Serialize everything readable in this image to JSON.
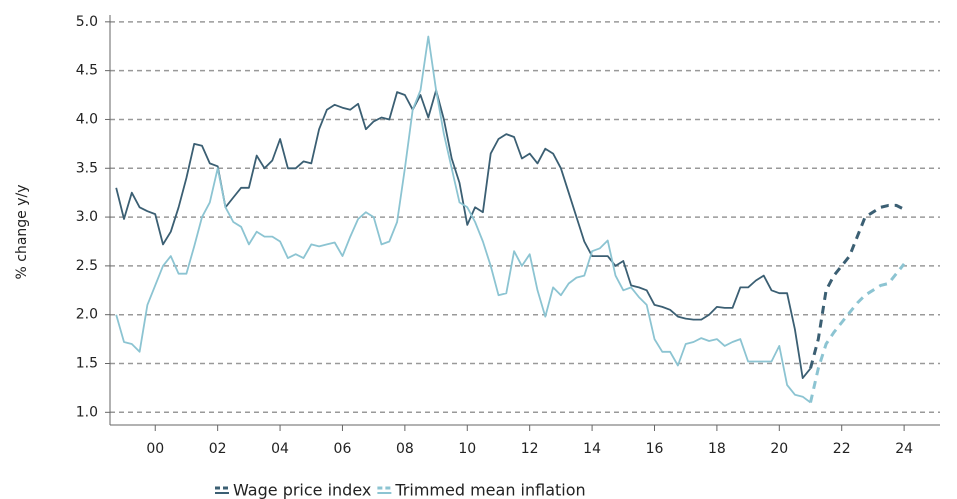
{
  "chart_data": {
    "type": "line",
    "y_label": "% change y/y",
    "x": [
      1998.75,
      1999,
      1999.25,
      1999.5,
      1999.75,
      2000,
      2000.25,
      2000.5,
      2000.75,
      2001,
      2001.25,
      2001.5,
      2001.75,
      2002,
      2002.25,
      2002.5,
      2002.75,
      2003,
      2003.25,
      2003.5,
      2003.75,
      2004,
      2004.25,
      2004.5,
      2004.75,
      2005,
      2005.25,
      2005.5,
      2005.75,
      2006,
      2006.25,
      2006.5,
      2006.75,
      2007,
      2007.25,
      2007.5,
      2007.75,
      2008,
      2008.25,
      2008.5,
      2008.75,
      2009,
      2009.25,
      2009.5,
      2009.75,
      2010,
      2010.25,
      2010.5,
      2010.75,
      2011,
      2011.25,
      2011.5,
      2011.75,
      2012,
      2012.25,
      2012.5,
      2012.75,
      2013,
      2013.25,
      2013.5,
      2013.75,
      2014,
      2014.25,
      2014.5,
      2014.75,
      2015,
      2015.25,
      2015.5,
      2015.75,
      2016,
      2016.25,
      2016.5,
      2016.75,
      2017,
      2017.25,
      2017.5,
      2017.75,
      2018,
      2018.25,
      2018.5,
      2018.75,
      2019,
      2019.25,
      2019.5,
      2019.75,
      2020,
      2020.25,
      2020.5,
      2020.75,
      2021,
      2021.25,
      2021.5,
      2021.75,
      2022,
      2022.25,
      2022.5,
      2022.75,
      2023,
      2023.25,
      2023.5,
      2023.75,
      2024
    ],
    "series": [
      {
        "name": "Wage price index",
        "color": "#3b5f73",
        "values": [
          3.3,
          2.98,
          3.25,
          3.1,
          3.06,
          3.03,
          2.72,
          2.85,
          3.1,
          3.4,
          3.75,
          3.73,
          3.55,
          3.52,
          3.1,
          3.2,
          3.3,
          3.3,
          3.63,
          3.5,
          3.58,
          3.8,
          3.5,
          3.5,
          3.57,
          3.55,
          3.9,
          4.1,
          4.15,
          4.12,
          4.1,
          4.16,
          3.9,
          3.98,
          4.02,
          4.0,
          4.28,
          4.25,
          4.1,
          4.25,
          4.02,
          4.3,
          4.0,
          3.6,
          3.35,
          2.92,
          3.1,
          3.05,
          3.65,
          3.8,
          3.85,
          3.82,
          3.6,
          3.65,
          3.55,
          3.7,
          3.65,
          3.5,
          3.25,
          3.0,
          2.75,
          2.6,
          2.6,
          2.6,
          2.5,
          2.55,
          2.3,
          2.28,
          2.25,
          2.1,
          2.08,
          2.05,
          1.98,
          1.96,
          1.95,
          1.95,
          2.0,
          2.08,
          2.07,
          2.07,
          2.28,
          2.28,
          2.35,
          2.4,
          2.25,
          2.22,
          2.22,
          1.85,
          1.35,
          1.45,
          null,
          null,
          null,
          null,
          null,
          null,
          null,
          null,
          null,
          null,
          null,
          null
        ],
        "forecast": [
          null,
          null,
          null,
          null,
          null,
          null,
          null,
          null,
          null,
          null,
          null,
          null,
          null,
          null,
          null,
          null,
          null,
          null,
          null,
          null,
          null,
          null,
          null,
          null,
          null,
          null,
          null,
          null,
          null,
          null,
          null,
          null,
          null,
          null,
          null,
          null,
          null,
          null,
          null,
          null,
          null,
          null,
          null,
          null,
          null,
          null,
          null,
          null,
          null,
          null,
          null,
          null,
          null,
          null,
          null,
          null,
          null,
          null,
          null,
          null,
          null,
          null,
          null,
          null,
          null,
          null,
          null,
          null,
          null,
          null,
          null,
          null,
          null,
          null,
          null,
          null,
          null,
          null,
          null,
          null,
          null,
          null,
          null,
          null,
          null,
          null,
          null,
          null,
          null,
          1.45,
          1.75,
          2.25,
          2.4,
          2.5,
          2.6,
          2.8,
          3.0,
          3.05,
          3.1,
          3.12,
          3.12,
          3.08
        ]
      },
      {
        "name": "Trimmed mean inflation",
        "color": "#8cc4d2",
        "values": [
          2.0,
          1.72,
          1.7,
          1.62,
          2.1,
          2.3,
          2.5,
          2.6,
          2.42,
          2.42,
          2.7,
          3.0,
          3.15,
          3.5,
          3.1,
          2.95,
          2.9,
          2.72,
          2.85,
          2.8,
          2.8,
          2.75,
          2.58,
          2.62,
          2.58,
          2.72,
          2.7,
          2.72,
          2.74,
          2.6,
          2.8,
          2.98,
          3.05,
          3.0,
          2.72,
          2.75,
          2.95,
          3.5,
          4.1,
          4.3,
          4.85,
          4.3,
          3.85,
          3.5,
          3.15,
          3.1,
          2.95,
          2.75,
          2.5,
          2.2,
          2.22,
          2.65,
          2.5,
          2.62,
          2.25,
          1.98,
          2.28,
          2.2,
          2.32,
          2.38,
          2.4,
          2.65,
          2.68,
          2.76,
          2.4,
          2.25,
          2.28,
          2.18,
          2.1,
          1.75,
          1.62,
          1.62,
          1.48,
          1.7,
          1.72,
          1.76,
          1.73,
          1.75,
          1.68,
          1.72,
          1.75,
          1.52,
          1.52,
          1.52,
          1.52,
          1.68,
          1.28,
          1.18,
          1.16,
          1.1,
          null,
          null,
          null,
          null,
          null,
          null,
          null,
          null,
          null,
          null,
          null,
          null
        ],
        "forecast": [
          null,
          null,
          null,
          null,
          null,
          null,
          null,
          null,
          null,
          null,
          null,
          null,
          null,
          null,
          null,
          null,
          null,
          null,
          null,
          null,
          null,
          null,
          null,
          null,
          null,
          null,
          null,
          null,
          null,
          null,
          null,
          null,
          null,
          null,
          null,
          null,
          null,
          null,
          null,
          null,
          null,
          null,
          null,
          null,
          null,
          null,
          null,
          null,
          null,
          null,
          null,
          null,
          null,
          null,
          null,
          null,
          null,
          null,
          null,
          null,
          null,
          null,
          null,
          null,
          null,
          null,
          null,
          null,
          null,
          null,
          null,
          null,
          null,
          null,
          null,
          null,
          null,
          null,
          null,
          null,
          null,
          null,
          null,
          null,
          null,
          null,
          null,
          null,
          null,
          1.1,
          1.45,
          1.7,
          1.82,
          1.92,
          2.02,
          2.12,
          2.2,
          2.25,
          2.3,
          2.32,
          2.42,
          2.52
        ]
      }
    ],
    "xlim": [
      1998.55,
      2025.15
    ],
    "xticks": [
      {
        "value": 2000,
        "label": "00"
      },
      {
        "value": 2002,
        "label": "02"
      },
      {
        "value": 2004,
        "label": "04"
      },
      {
        "value": 2006,
        "label": "06"
      },
      {
        "value": 2008,
        "label": "08"
      },
      {
        "value": 2010,
        "label": "10"
      },
      {
        "value": 2012,
        "label": "12"
      },
      {
        "value": 2014,
        "label": "14"
      },
      {
        "value": 2016,
        "label": "16"
      },
      {
        "value": 2018,
        "label": "18"
      },
      {
        "value": 2020,
        "label": "20"
      },
      {
        "value": 2022,
        "label": "22"
      },
      {
        "value": 2024,
        "label": "24"
      }
    ],
    "ylim": [
      0.87,
      5.07
    ],
    "yticks": [
      {
        "value": 1,
        "label": "1.0"
      },
      1.5,
      {
        "value": 2,
        "label": "2.0"
      },
      2.5,
      {
        "value": 3,
        "label": "3.0"
      },
      3.5,
      {
        "value": 4,
        "label": "4.0"
      },
      4.5,
      {
        "value": 5,
        "label": "5.0"
      }
    ],
    "grid": true,
    "legend": "bottom"
  }
}
